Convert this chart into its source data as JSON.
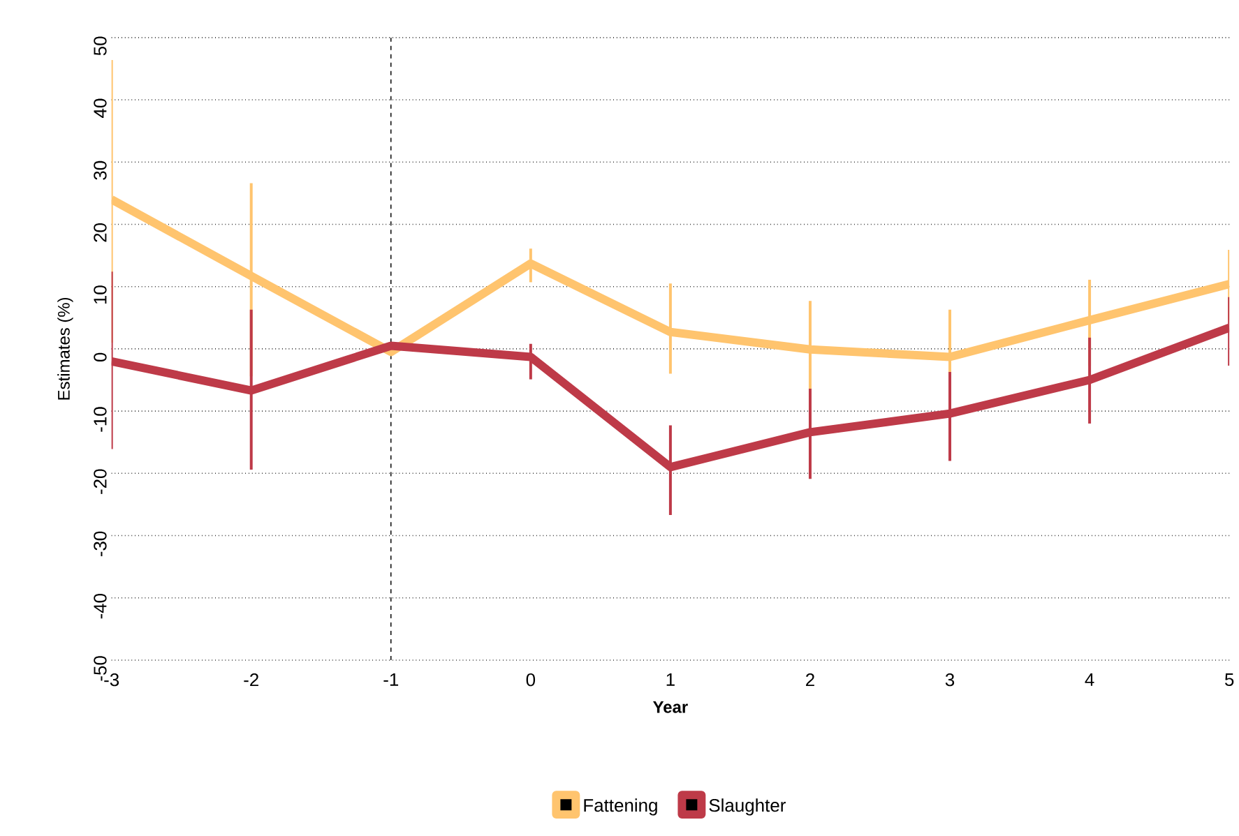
{
  "chart_data": {
    "type": "line",
    "xlabel": "Year",
    "ylabel": "Estimates (%)",
    "x": [
      -3,
      -2,
      -1,
      0,
      1,
      2,
      3,
      4,
      5
    ],
    "series": [
      {
        "name": "Fattening",
        "color": "#ffc46e",
        "values": [
          24.0,
          11.7,
          -0.5,
          13.7,
          2.7,
          -0.1,
          -1.3,
          4.6,
          10.4
        ],
        "errors": [
          [
            1.0,
            46.4
          ],
          [
            -4.4,
            26.6
          ],
          null,
          [
            10.7,
            16.1
          ],
          [
            -4.0,
            10.5
          ],
          [
            -6.5,
            7.7
          ],
          [
            -8.2,
            6.3
          ],
          [
            -2.7,
            11.1
          ],
          [
            4.6,
            15.9
          ]
        ]
      },
      {
        "name": "Slaughter",
        "color": "#be3a48",
        "values": [
          -2.0,
          -6.7,
          0.5,
          -1.3,
          -19.0,
          -13.4,
          -10.4,
          -5.0,
          3.4
        ],
        "errors": [
          [
            -16.1,
            12.4
          ],
          [
            -19.4,
            6.3
          ],
          null,
          [
            -4.9,
            0.8
          ],
          [
            -26.7,
            -12.3
          ],
          [
            -20.9,
            -6.4
          ],
          [
            -18.0,
            -3.7
          ],
          [
            -12.0,
            1.8
          ],
          [
            -2.7,
            8.3
          ]
        ]
      }
    ],
    "xlim": [
      -3,
      5
    ],
    "xticks": [
      -3,
      -2,
      -1,
      0,
      1,
      2,
      3,
      4,
      5
    ],
    "ylim": [
      -50,
      50
    ],
    "yticks": [
      -50,
      -40,
      -30,
      -20,
      -10,
      0,
      10,
      20,
      30,
      40,
      50
    ],
    "grid": "y",
    "legend": "bottom",
    "line_style": "solid",
    "marker": "none",
    "ref_lines": [
      {
        "axis": "x",
        "value": -1,
        "color": "#000000",
        "line_style": "dashed"
      }
    ]
  }
}
